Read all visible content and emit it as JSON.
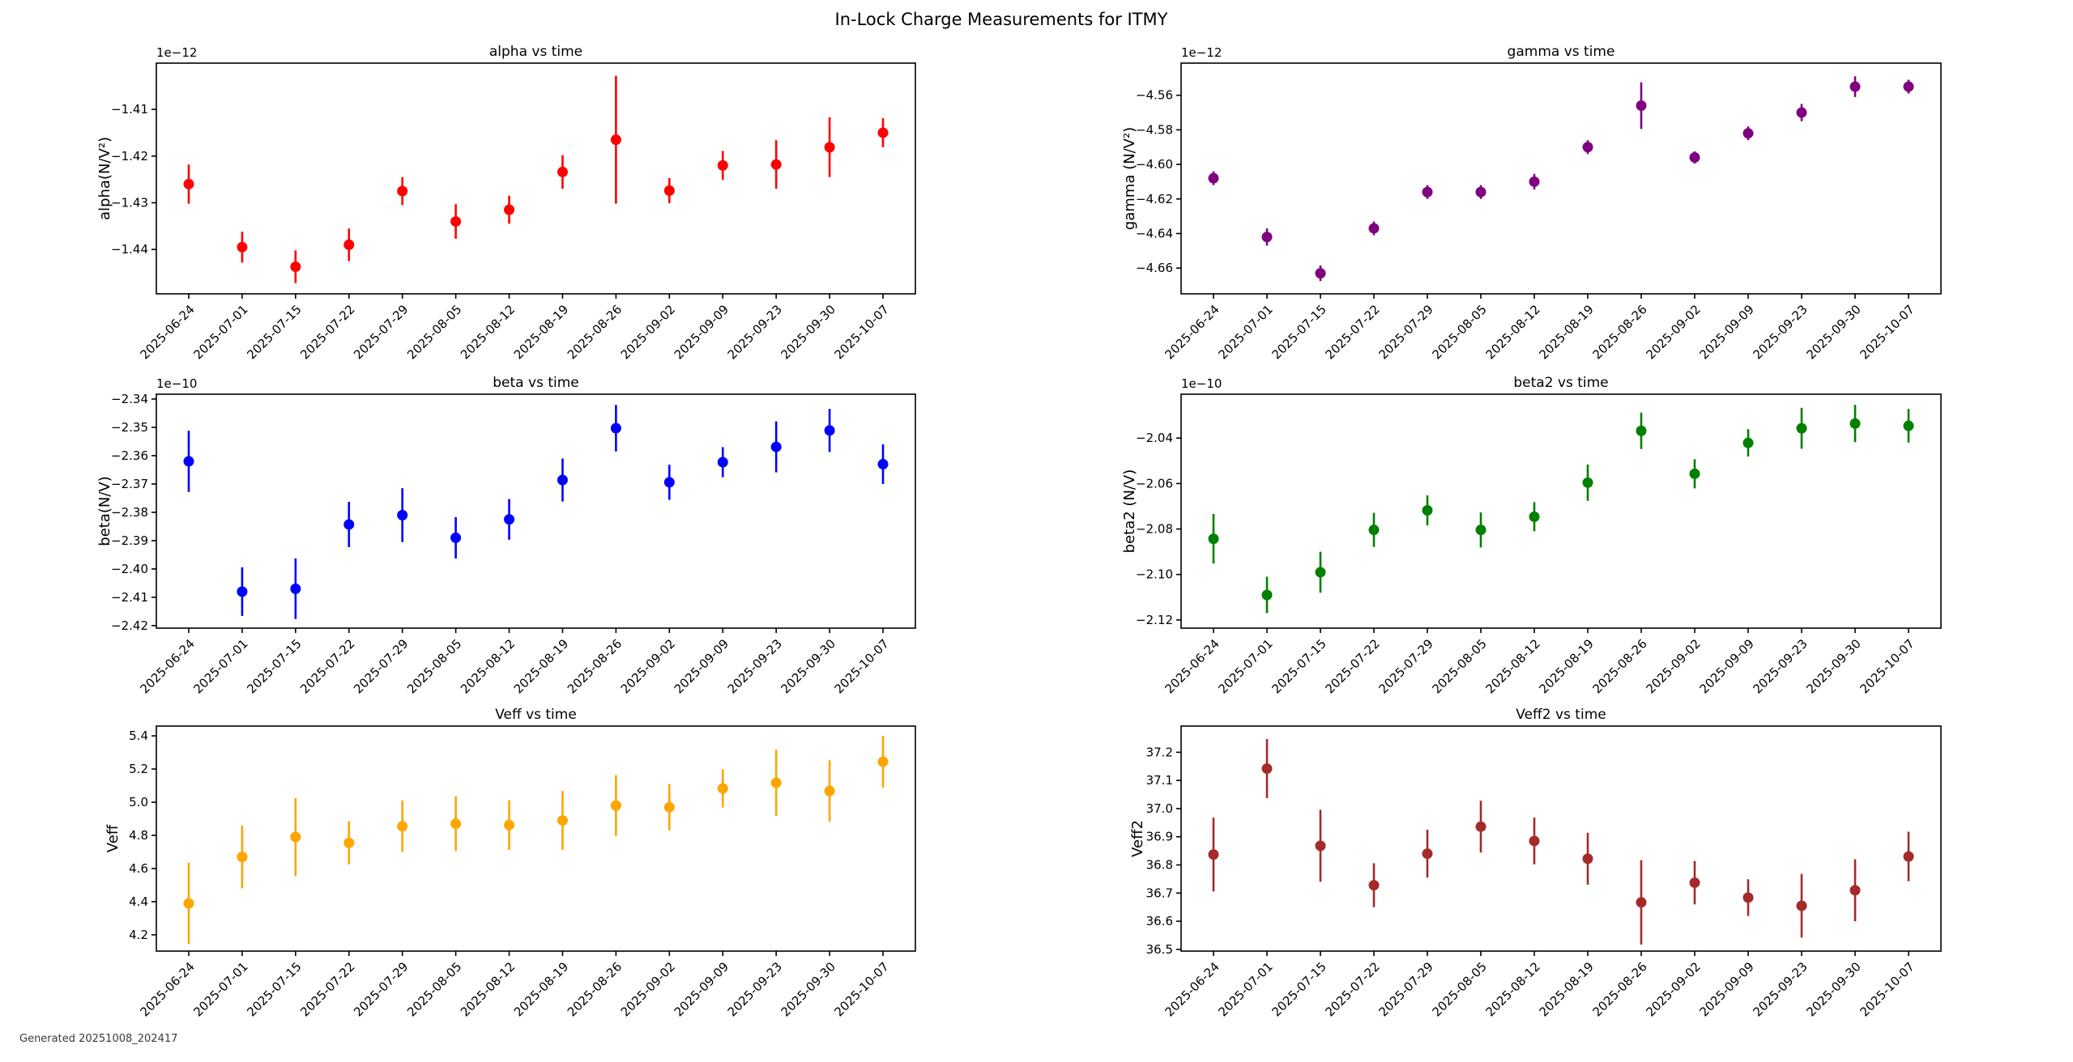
{
  "figure": {
    "title": "In-Lock Charge Measurements for ITMY",
    "generated_label": "Generated 20251008_202417",
    "background": "#ffffff",
    "text_color": "#000000"
  },
  "categories": [
    "2025-06-24",
    "2025-07-01",
    "2025-07-15",
    "2025-07-22",
    "2025-07-29",
    "2025-08-05",
    "2025-08-12",
    "2025-08-19",
    "2025-08-26",
    "2025-09-02",
    "2025-09-09",
    "2025-09-23",
    "2025-09-30",
    "2025-10-07"
  ],
  "chart_data": [
    {
      "id": "alpha",
      "type": "scatter",
      "title": "alpha vs time",
      "xlabel": "",
      "ylabel": "alpha(N/V²)",
      "offset_label": "1e−12",
      "color": "#ff0000",
      "grid": false,
      "ylim": [
        -1.4495,
        -1.4001
      ],
      "yticks": [
        -1.41,
        -1.42,
        -1.43,
        -1.44
      ],
      "tick_decimals": 2,
      "values": [
        -1.426,
        -1.4395,
        -1.4437,
        -1.439,
        -1.4275,
        -1.434,
        -1.4315,
        -1.4234,
        -1.4165,
        -1.4274,
        -1.422,
        -1.4218,
        -1.4181,
        -1.415
      ],
      "errors": [
        0.0042,
        0.0033,
        0.0035,
        0.0035,
        0.003,
        0.0037,
        0.003,
        0.0036,
        0.0137,
        0.0027,
        0.0031,
        0.0052,
        0.0064,
        0.0031
      ]
    },
    {
      "id": "gamma",
      "type": "scatter",
      "title": "gamma vs time",
      "xlabel": "",
      "ylabel": "gamma (N/V²)",
      "offset_label": "1e−12",
      "color": "#800080",
      "grid": false,
      "ylim": [
        -4.6749,
        -4.5414
      ],
      "yticks": [
        -4.56,
        -4.58,
        -4.6,
        -4.62,
        -4.64,
        -4.66
      ],
      "tick_decimals": 2,
      "values": [
        -4.608,
        -4.642,
        -4.663,
        -4.637,
        -4.616,
        -4.616,
        -4.61,
        -4.59,
        -4.566,
        -4.596,
        -4.582,
        -4.57,
        -4.555,
        -4.555
      ],
      "errors": [
        0.004,
        0.005,
        0.0045,
        0.004,
        0.004,
        0.004,
        0.0045,
        0.004,
        0.0135,
        0.0035,
        0.004,
        0.005,
        0.006,
        0.004
      ]
    },
    {
      "id": "beta",
      "type": "scatter",
      "title": "beta vs time",
      "xlabel": "",
      "ylabel": "beta(N/V)",
      "offset_label": "1e−10",
      "color": "#0000ff",
      "grid": false,
      "ylim": [
        -2.4209,
        -2.3383
      ],
      "yticks": [
        -2.34,
        -2.35,
        -2.36,
        -2.37,
        -2.38,
        -2.39,
        -2.4,
        -2.41,
        -2.42
      ],
      "tick_decimals": 2,
      "values": [
        -2.362,
        -2.408,
        -2.407,
        -2.3843,
        -2.381,
        -2.389,
        -2.3825,
        -2.3686,
        -2.3503,
        -2.3694,
        -2.3623,
        -2.3569,
        -2.3511,
        -2.363
      ],
      "errors": [
        0.0108,
        0.0086,
        0.0107,
        0.008,
        0.0095,
        0.0073,
        0.0072,
        0.0076,
        0.0082,
        0.0062,
        0.0053,
        0.009,
        0.0076,
        0.007
      ]
    },
    {
      "id": "beta2",
      "type": "scatter",
      "title": "beta2 vs time",
      "xlabel": "",
      "ylabel": "beta2 (N/V)",
      "offset_label": "1e−10",
      "color": "#008000",
      "grid": false,
      "ylim": [
        -2.1236,
        -2.0207
      ],
      "yticks": [
        -2.04,
        -2.06,
        -2.08,
        -2.1,
        -2.12
      ],
      "tick_decimals": 2,
      "values": [
        -2.0843,
        -2.109,
        -2.099,
        -2.0804,
        -2.0718,
        -2.0804,
        -2.0746,
        -2.0596,
        -2.0368,
        -2.0557,
        -2.0421,
        -2.0357,
        -2.0336,
        -2.0346
      ],
      "errors": [
        0.0109,
        0.008,
        0.009,
        0.0075,
        0.0066,
        0.0077,
        0.0064,
        0.008,
        0.008,
        0.0064,
        0.006,
        0.009,
        0.0082,
        0.0074
      ]
    },
    {
      "id": "veff",
      "type": "scatter",
      "title": "Veff vs time",
      "xlabel": "",
      "ylabel": "Veff",
      "offset_label": "",
      "color": "#ffa500",
      "grid": false,
      "ylim": [
        4.102,
        5.459
      ],
      "yticks": [
        4.2,
        4.4,
        4.6,
        4.8,
        5.0,
        5.2,
        5.4
      ],
      "tick_decimals": 1,
      "values": [
        4.39,
        4.67,
        4.79,
        4.755,
        4.855,
        4.87,
        4.862,
        4.89,
        4.98,
        4.97,
        5.083,
        5.117,
        5.068,
        5.244
      ],
      "errors": [
        0.245,
        0.19,
        0.235,
        0.13,
        0.155,
        0.165,
        0.15,
        0.178,
        0.183,
        0.14,
        0.115,
        0.2,
        0.185,
        0.156
      ]
    },
    {
      "id": "veff2",
      "type": "scatter",
      "title": "Veff2 vs time",
      "xlabel": "",
      "ylabel": "Veff2",
      "offset_label": "",
      "color": "#a52a2a",
      "grid": false,
      "ylim": [
        36.494,
        37.293
      ],
      "yticks": [
        36.5,
        36.6,
        36.7,
        36.8,
        36.9,
        37.0,
        37.1,
        37.2
      ],
      "tick_decimals": 1,
      "values": [
        36.837,
        37.142,
        36.868,
        36.728,
        36.84,
        36.936,
        36.885,
        36.822,
        36.667,
        36.737,
        36.684,
        36.655,
        36.71,
        36.83
      ],
      "errors": [
        0.131,
        0.105,
        0.128,
        0.078,
        0.085,
        0.092,
        0.083,
        0.092,
        0.15,
        0.077,
        0.065,
        0.113,
        0.11,
        0.088
      ]
    }
  ]
}
